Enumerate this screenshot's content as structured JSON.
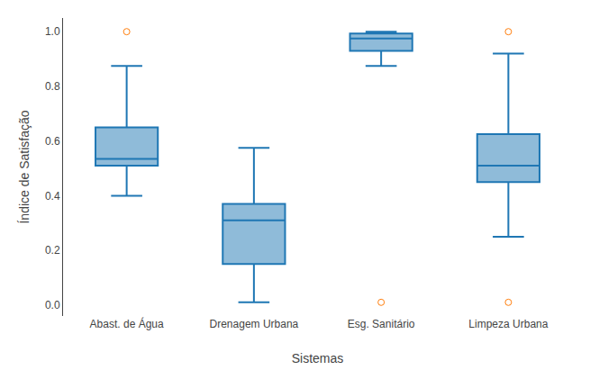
{
  "chart_data": {
    "type": "box",
    "categories": [
      "Abast. de Água",
      "Drenagem Urbana",
      "Esg. Sanitário",
      "Limpeza Urbana"
    ],
    "boxes": [
      {
        "q1": 0.51,
        "median": 0.535,
        "q3": 0.65,
        "whislo": 0.4,
        "whishi": 0.875,
        "fliers": [
          1.0
        ]
      },
      {
        "q1": 0.15,
        "median": 0.31,
        "q3": 0.37,
        "whislo": 0.01,
        "whishi": 0.575,
        "fliers": []
      },
      {
        "q1": 0.93,
        "median": 0.975,
        "q3": 0.993,
        "whislo": 0.875,
        "whishi": 1.0,
        "fliers": [
          0.01
        ]
      },
      {
        "q1": 0.45,
        "median": 0.51,
        "q3": 0.625,
        "whislo": 0.25,
        "whishi": 0.92,
        "fliers": [
          1.0,
          0.01
        ]
      }
    ],
    "xlabel": "Sistemas",
    "ylabel": "Índice de Satisfação",
    "ylim": [
      -0.04,
      1.05
    ],
    "yticks": [
      {
        "value": 0.0,
        "label": "0.0"
      },
      0.2,
      0.4,
      0.6,
      0.8,
      {
        "value": 1.0,
        "label": "1.0"
      }
    ],
    "grid": false
  }
}
